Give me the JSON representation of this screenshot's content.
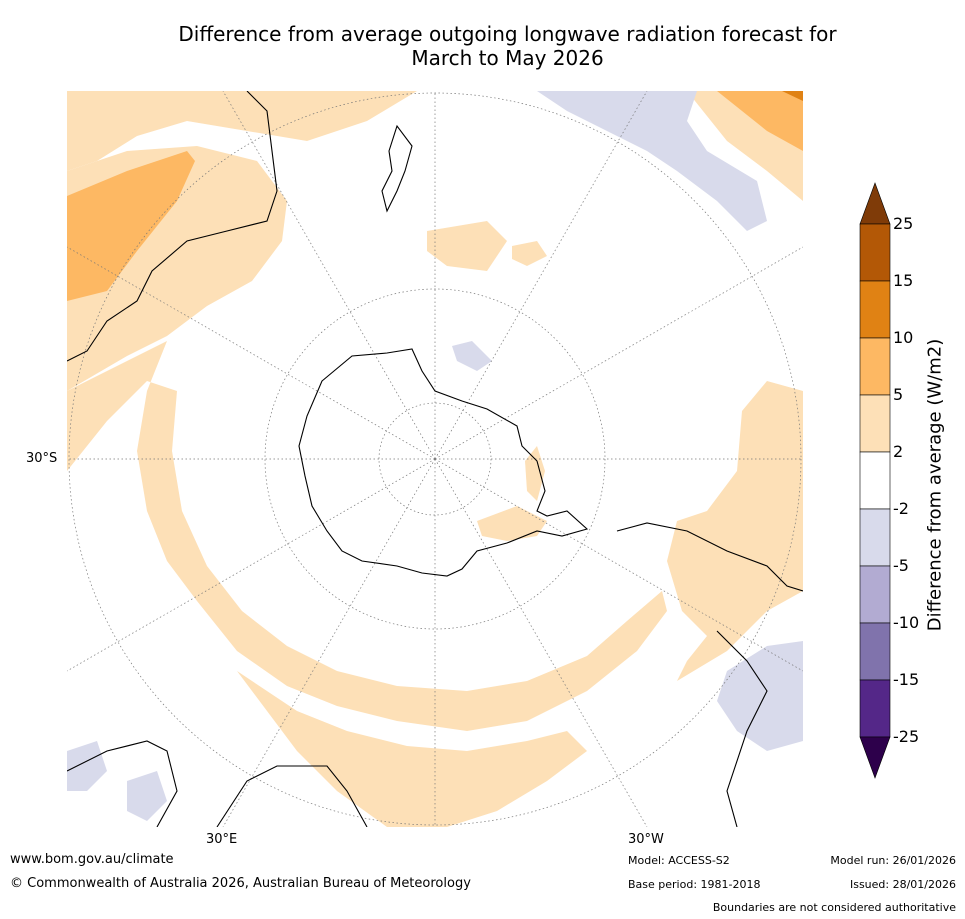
{
  "title_line1": "Difference from average outgoing longwave radiation forecast for",
  "title_line2": "March to May 2026",
  "map": {
    "lat_label": "30°S",
    "lon_labels": {
      "east": "30°E",
      "west": "30°W"
    },
    "colors": {
      "ocean": "#ffffff",
      "pos_2_5": "#fde0b7",
      "pos_5_10": "#fdb863",
      "pos_10_15": "#e08214",
      "pos_15_25": "#b35806",
      "pos_gt25": "#7f3b08",
      "neg_2_5": "#d8daeb",
      "neg_5_10": "#b2abd2",
      "neg_10_15": "#8073ac",
      "neg_15_25": "#542788",
      "neg_lt25": "#2d004b",
      "coast": "#000000"
    }
  },
  "colorbar": {
    "label": "Difference from average (W/m2)",
    "ticks": [
      "25",
      "15",
      "10",
      "5",
      "2",
      "-2",
      "-5",
      "-10",
      "-15",
      "-25"
    ],
    "bands": [
      "#b35806",
      "#e08214",
      "#fdb863",
      "#fde0b7",
      "#ffffff",
      "#d8daeb",
      "#b2abd2",
      "#8073ac",
      "#542788"
    ],
    "top_arrow": "#7f3b08",
    "bottom_arrow": "#2d004b"
  },
  "footer": {
    "website": "www.bom.gov.au/climate",
    "copyright": "© Commonwealth of Australia 2026, Australian Bureau of Meteorology",
    "model": "Model: ACCESS-S2",
    "base_period": "Base period: 1981-2018",
    "model_run": "Model run: 26/01/2026",
    "issued": "Issued: 28/01/2026",
    "disclaimer": "Boundaries are not considered authoritative"
  }
}
